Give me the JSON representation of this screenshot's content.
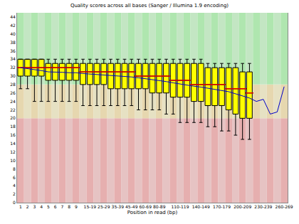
{
  "chart_data": {
    "type": "box",
    "title": "Quality scores across all bases (Sanger / Illumina 1.9 encoding)",
    "x_label": "Position in read (bp)",
    "categories": [
      "1",
      "2",
      "3",
      "4",
      "5",
      "6",
      "7",
      "8",
      "9",
      null,
      "15-19",
      null,
      "25-29",
      null,
      "35-39",
      null,
      "45-49",
      null,
      "60-69",
      null,
      "80-89",
      null,
      null,
      "110-119",
      null,
      null,
      "140-149",
      null,
      null,
      "170-179",
      null,
      null,
      "200-209",
      null,
      null,
      "230-239",
      null,
      null,
      "260-269"
    ],
    "lower": [
      27,
      27,
      24,
      24,
      24,
      24,
      24,
      24,
      24,
      23,
      23,
      23,
      23,
      23,
      23,
      23,
      23,
      22,
      22,
      22,
      22,
      21,
      21,
      19,
      19,
      19,
      19,
      18,
      18,
      17,
      17,
      16,
      15,
      15,
      null,
      null,
      null,
      null,
      null
    ],
    "q1": [
      30,
      30,
      30,
      30,
      29,
      29,
      29,
      29,
      29,
      28,
      28,
      28,
      28,
      27,
      27,
      27,
      27,
      27,
      27,
      26,
      26,
      26,
      25,
      25,
      25,
      24,
      24,
      23,
      23,
      23,
      22,
      21,
      20,
      20,
      null,
      null,
      null,
      null,
      null
    ],
    "median": [
      32,
      32,
      32,
      32,
      32,
      32,
      32,
      32,
      32,
      31,
      31,
      31,
      31,
      31,
      31,
      31,
      31,
      30,
      30,
      30,
      30,
      30,
      29,
      29,
      29,
      28,
      28,
      28,
      28,
      28,
      27,
      27,
      27,
      26,
      null,
      null,
      null,
      null,
      null
    ],
    "q3": [
      34,
      34,
      34,
      34,
      33,
      33,
      33,
      33,
      33,
      33,
      33,
      33,
      33,
      33,
      33,
      33,
      33,
      33,
      33,
      33,
      33,
      33,
      33,
      33,
      33,
      33,
      33,
      32,
      32,
      32,
      32,
      32,
      31,
      31,
      null,
      null,
      null,
      null,
      null
    ],
    "upper": [
      34,
      34,
      34,
      34,
      34,
      34,
      34,
      34,
      34,
      34,
      34,
      34,
      34,
      34,
      34,
      34,
      34,
      34,
      34,
      34,
      34,
      34,
      34,
      34,
      34,
      34,
      34,
      33,
      33,
      33,
      33,
      33,
      33,
      33,
      null,
      null,
      null,
      null,
      null
    ],
    "mean": [
      32.0,
      31.8,
      31.5,
      31.3,
      31.0,
      31.0,
      30.9,
      30.8,
      30.8,
      30.6,
      30.5,
      30.4,
      30.3,
      30.1,
      30.0,
      29.9,
      29.8,
      29.6,
      29.4,
      29.2,
      29.0,
      28.7,
      28.4,
      28.1,
      27.9,
      27.6,
      27.4,
      27.1,
      26.8,
      26.6,
      26.3,
      25.8,
      25.3,
      24.8,
      24.0,
      24.5,
      21.0,
      21.5,
      27.5
    ],
    "color": "#ffff00",
    "quality_bands": [
      20,
      28
    ],
    "ylim": [
      0,
      45
    ],
    "yticks": [
      0,
      2,
      4,
      6,
      8,
      10,
      12,
      14,
      16,
      18,
      20,
      22,
      24,
      26,
      28,
      30,
      32,
      34,
      36,
      38,
      40,
      42,
      44
    ],
    "grid": false
  }
}
